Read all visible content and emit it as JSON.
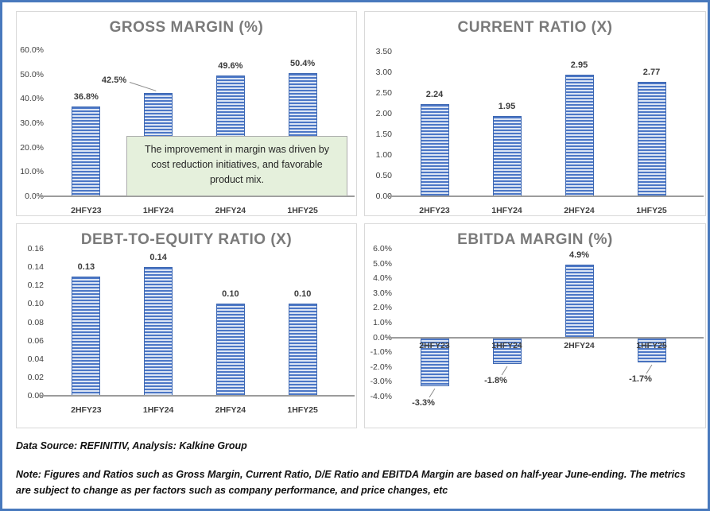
{
  "colors": {
    "page_border": "#4879BD",
    "panel_border": "#D9D9D9",
    "bar_stripe_dark": "#4C77C6",
    "bar_stripe_light": "#DCE5F4",
    "bar_border": "#3E68B2",
    "axis": "#9C9C9C",
    "title_text": "#7A7A7A",
    "annotation_bg": "#E5F0DC"
  },
  "chart_data": [
    {
      "type": "bar",
      "title": "GROSS MARGIN (%)",
      "categories": [
        "2HFY23",
        "1HFY24",
        "2HFY24",
        "1HFY25"
      ],
      "values": [
        36.8,
        42.5,
        49.6,
        50.4
      ],
      "labels": [
        "36.8%",
        "42.5%",
        "49.6%",
        "50.4%"
      ],
      "yticks": [
        "60.0%",
        "50.0%",
        "40.0%",
        "30.0%",
        "20.0%",
        "10.0%",
        "0.0%"
      ],
      "ymax": 60,
      "ymin": 0,
      "ylim": [
        0,
        60
      ],
      "xlabel": "",
      "ylabel": "",
      "grid": false,
      "legend": "none",
      "callout_index": 1,
      "annotation": "The improvement in margin was driven by cost reduction initiatives, and favorable product mix."
    },
    {
      "type": "bar",
      "title": "CURRENT RATIO (X)",
      "categories": [
        "2HFY23",
        "1HFY24",
        "2HFY24",
        "1HFY25"
      ],
      "values": [
        2.24,
        1.95,
        2.95,
        2.77
      ],
      "labels": [
        "2.24",
        "1.95",
        "2.95",
        "2.77"
      ],
      "yticks": [
        "3.50",
        "3.00",
        "2.50",
        "2.00",
        "1.50",
        "1.00",
        "0.50",
        "0.00"
      ],
      "ymax": 3.5,
      "ymin": 0,
      "ylim": [
        0,
        3.5
      ],
      "xlabel": "",
      "ylabel": "",
      "grid": false,
      "legend": "none"
    },
    {
      "type": "bar",
      "title": "DEBT-TO-EQUITY RATIO (X)",
      "categories": [
        "2HFY23",
        "1HFY24",
        "2HFY24",
        "1HFY25"
      ],
      "values": [
        0.13,
        0.14,
        0.1,
        0.1
      ],
      "labels": [
        "0.13",
        "0.14",
        "0.10",
        "0.10"
      ],
      "yticks": [
        "0.16",
        "0.14",
        "0.12",
        "0.10",
        "0.08",
        "0.06",
        "0.04",
        "0.02",
        "0.00"
      ],
      "ymax": 0.16,
      "ymin": 0,
      "ylim": [
        0,
        0.16
      ],
      "xlabel": "",
      "ylabel": "",
      "grid": false,
      "legend": "none"
    },
    {
      "type": "bar",
      "title": "EBITDA MARGIN (%)",
      "categories": [
        "2HFY23",
        "1HFY24",
        "2HFY24",
        "1HFY25"
      ],
      "values": [
        -3.3,
        -1.8,
        4.9,
        -1.7
      ],
      "labels": [
        "-3.3%",
        "-1.8%",
        "4.9%",
        "-1.7%"
      ],
      "yticks": [
        "6.0%",
        "5.0%",
        "4.0%",
        "3.0%",
        "2.0%",
        "1.0%",
        "0.0%",
        "-1.0%",
        "-2.0%",
        "-3.0%",
        "-4.0%"
      ],
      "ymax": 6,
      "ymin": -4,
      "ylim": [
        -4,
        6
      ],
      "xlabel": "",
      "ylabel": "",
      "grid": false,
      "legend": "none",
      "cat_labels_at_zero": true
    }
  ],
  "footer": {
    "source": "Data Source: REFINITIV, Analysis: Kalkine Group",
    "note": "Note: Figures and Ratios such as Gross Margin, Current Ratio, D/E Ratio and EBITDA Margin are based on half-year June-ending. The metrics are subject to change as per factors such as company performance, and price changes, etc"
  }
}
